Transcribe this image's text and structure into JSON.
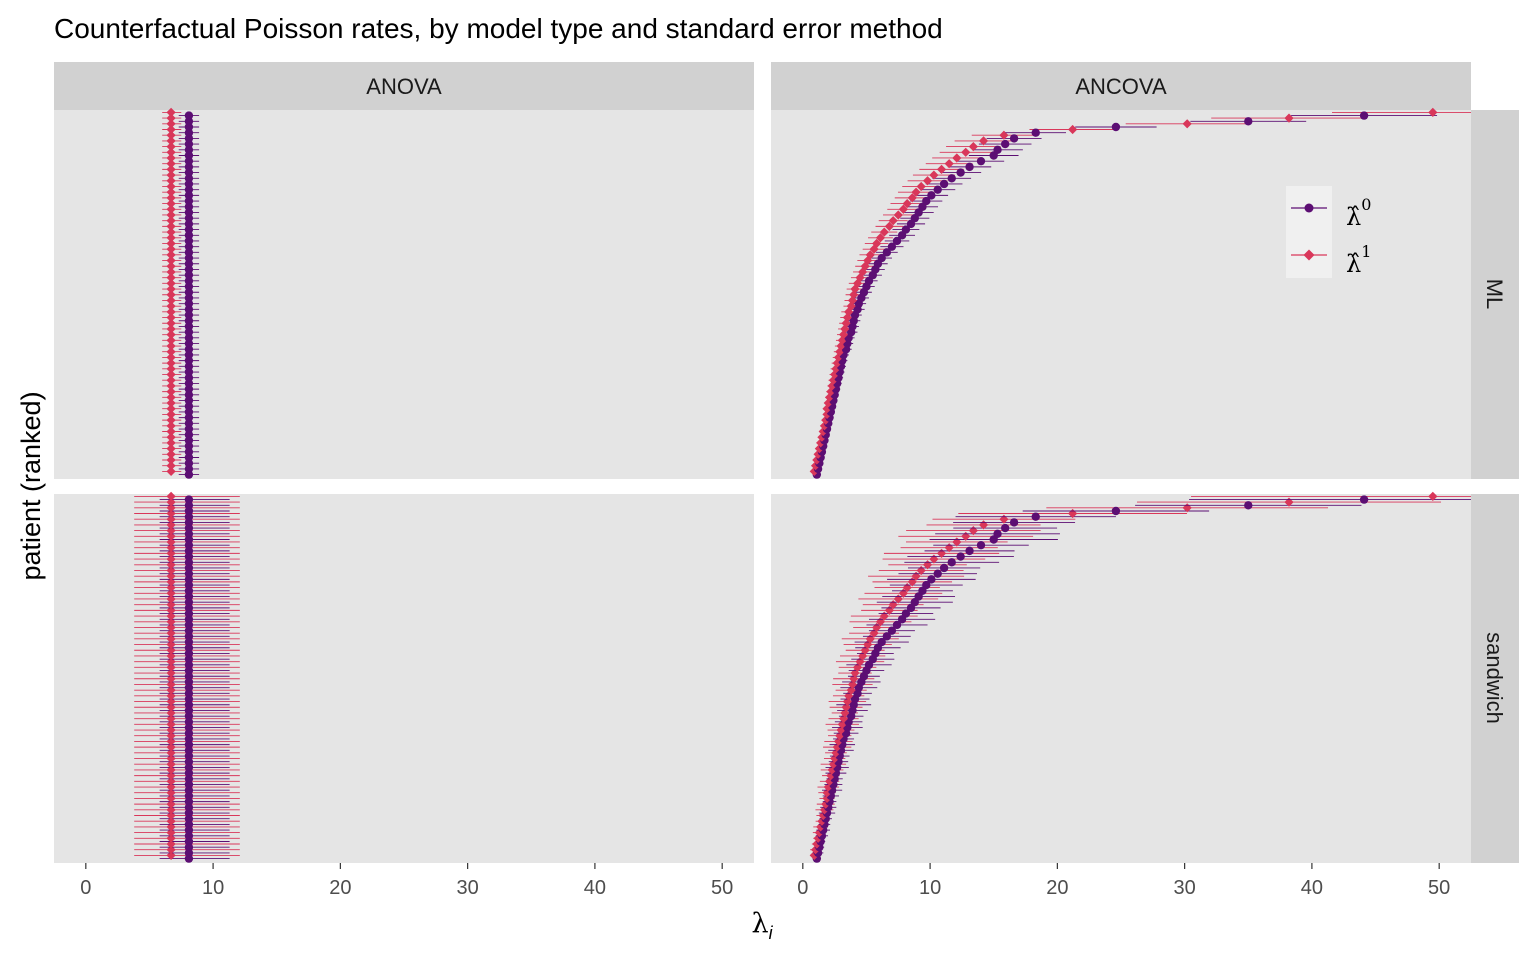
{
  "chart_data": {
    "type": "scatter",
    "title": "Counterfactual Poisson rates, by model type and standard error method",
    "xlabel": "λ",
    "xlabel_subscript": "i",
    "ylabel": "patient (ranked)",
    "xlim": [
      -2.5,
      52.5
    ],
    "x_ticks": [
      "0",
      "10",
      "20",
      "30",
      "40",
      "50"
    ],
    "facet_columns": [
      "ANOVA",
      "ANCOVA"
    ],
    "facet_rows": [
      "ML",
      "sandwich"
    ],
    "grid": false,
    "legend_position": "top-right (inside ANCOVA / ML panel)",
    "colors": {
      "lambda0": "#5c0e73",
      "lambda1": "#d9375a",
      "panel_bg": "#e5e5e5",
      "strip_bg": "#d1d1d1"
    },
    "series": [
      {
        "key": "lambda0",
        "legend_label": "λ̂",
        "legend_superscript": "0",
        "marker": "circle"
      },
      {
        "key": "lambda1",
        "legend_label": "λ̂",
        "legend_superscript": "1",
        "marker": "diamond"
      }
    ],
    "n_patients": 64,
    "anova": {
      "lambda0": 8.1,
      "lambda1": 6.7,
      "ML": {
        "lambda0_ci": [
          7.3,
          8.9
        ],
        "lambda1_ci": [
          6.0,
          7.5
        ]
      },
      "sandwich": {
        "lambda0_ci": [
          5.8,
          11.3
        ],
        "lambda1_ci": [
          3.8,
          12.1
        ]
      }
    },
    "ancova_lambda0": [
      1.1,
      1.2,
      1.3,
      1.4,
      1.5,
      1.6,
      1.7,
      1.8,
      1.9,
      2.0,
      2.1,
      2.2,
      2.3,
      2.4,
      2.5,
      2.6,
      2.7,
      2.8,
      2.9,
      3.0,
      3.1,
      3.2,
      3.4,
      3.5,
      3.6,
      3.8,
      3.9,
      4.0,
      4.1,
      4.3,
      4.4,
      4.6,
      4.8,
      5.0,
      5.2,
      5.5,
      5.7,
      5.9,
      6.2,
      6.6,
      7.0,
      7.4,
      7.8,
      8.1,
      8.5,
      8.8,
      9.1,
      9.4,
      9.7,
      10.1,
      10.6,
      11.1,
      11.7,
      12.4,
      13.1,
      14.0,
      15.0,
      15.3,
      15.9,
      16.6,
      18.3,
      24.6,
      35.0,
      44.1
    ],
    "ancova_lambda1": [
      0.9,
      1.0,
      1.1,
      1.2,
      1.3,
      1.4,
      1.5,
      1.6,
      1.7,
      1.8,
      1.9,
      1.9,
      2.0,
      2.1,
      2.2,
      2.3,
      2.4,
      2.5,
      2.6,
      2.7,
      2.8,
      2.9,
      3.0,
      3.1,
      3.2,
      3.3,
      3.4,
      3.5,
      3.6,
      3.8,
      3.9,
      4.0,
      4.1,
      4.3,
      4.5,
      4.7,
      4.9,
      5.1,
      5.3,
      5.6,
      5.8,
      6.1,
      6.4,
      6.8,
      7.1,
      7.5,
      7.9,
      8.2,
      8.6,
      8.9,
      9.3,
      9.8,
      10.3,
      10.9,
      11.5,
      12.1,
      12.8,
      13.4,
      14.2,
      15.8,
      21.2,
      30.2,
      38.2,
      49.5
    ]
  }
}
